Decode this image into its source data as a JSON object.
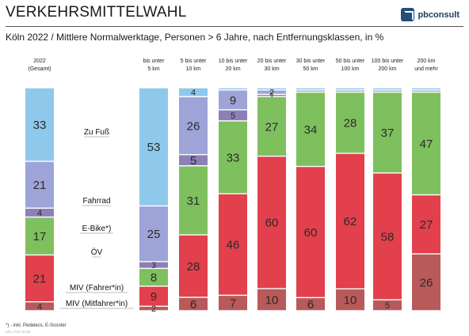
{
  "header": {
    "title": "VERKEHRSMITTELWAHL",
    "subtitle": "Köln 2022 / Mittlere Normalwerktage, Personen > 6 Jahre, nach Entfernungsklassen, in %",
    "brand": "pbconsult"
  },
  "footer": {
    "footnote": "*) - inkl. Pedelecs, E-Scooter",
    "code": "KÖL-2712-22-001"
  },
  "colors": {
    "zu_fuss": "#8ec9ec",
    "fahrrad_hell": "#9ea4d8",
    "fahrrad_dunkel": "#8d7fb8",
    "e_bike": "#7ec05e",
    "oev": "#7ec05e",
    "miv_fahrer": "#e1404c",
    "miv_mitfahrer": "#b85a5a",
    "label_light": "#ffffff",
    "label_dark": "#2a2a2a"
  },
  "chart_data": {
    "type": "bar",
    "stacked": true,
    "normalized": true,
    "categories": [
      "2022\n(Gesamt)",
      "bis unter\n5 km",
      "5 bis unter\n10 km",
      "10 bis unter\n20 km",
      "20 bis unter\n30 km",
      "30 bis unter\n50 km",
      "50 bis unter\n100 km",
      "100 bis unter\n200 km",
      "200 km\nund mehr"
    ],
    "series": [
      {
        "name": "Zu Fuß",
        "color": "#8ec9ec",
        "values": [
          33,
          53,
          4,
          1,
          1,
          1,
          1,
          1,
          1
        ],
        "labels": [
          "33",
          "53",
          "4",
          "",
          "",
          "",
          "",
          "",
          ""
        ]
      },
      {
        "name": "Fahrrad",
        "color": "#9ea4d8",
        "values": [
          21,
          25,
          26,
          9,
          2,
          1,
          1,
          1,
          1
        ],
        "labels": [
          "21",
          "25",
          "26",
          "9",
          "2",
          "",
          "",
          "",
          ""
        ]
      },
      {
        "name": "Fahrrad",
        "color": "#8d7fb8",
        "values": [
          4,
          3,
          5,
          5,
          1,
          0,
          0,
          0,
          0
        ],
        "labels": [
          "4",
          "3",
          "5",
          "5",
          "1",
          "",
          "",
          "",
          ""
        ]
      },
      {
        "name": "E-Bike*)",
        "color": "#7ec05e",
        "values": [
          17,
          0,
          31,
          33,
          27,
          34,
          28,
          37,
          47
        ],
        "labels": [
          "17",
          "",
          "31",
          "33",
          "27",
          "34",
          "28",
          "37",
          "47"
        ]
      },
      {
        "name": "ÖV",
        "color": "#7ec05e",
        "values": [
          0,
          8,
          0,
          0,
          0,
          0,
          0,
          0,
          0
        ],
        "labels": [
          "",
          "8",
          "",
          "",
          "",
          "",
          "",
          "",
          ""
        ]
      },
      {
        "name": "MIV (Fahrer*in)",
        "color": "#e1404c",
        "values": [
          21,
          9,
          28,
          46,
          60,
          60,
          62,
          58,
          27
        ],
        "labels": [
          "21",
          "9",
          "28",
          "46",
          "60",
          "60",
          "62",
          "58",
          "27"
        ]
      },
      {
        "name": "MIV (Mitfahrer*in)",
        "color": "#b85a5a",
        "values": [
          4,
          2,
          6,
          7,
          10,
          6,
          10,
          5,
          26
        ],
        "labels": [
          "4",
          "2",
          "6",
          "7",
          "10",
          "6",
          "10",
          "5",
          "26"
        ]
      }
    ],
    "ylim": [
      0,
      100
    ],
    "legend": [
      "Zu Fuß",
      "Fahrrad",
      "E-Bike*)",
      "ÖV",
      "MIV (Fahrer*in)",
      "MIV (Mitfahrer*in)"
    ],
    "legend_placement": "inline between first and second bar",
    "grid": false
  }
}
